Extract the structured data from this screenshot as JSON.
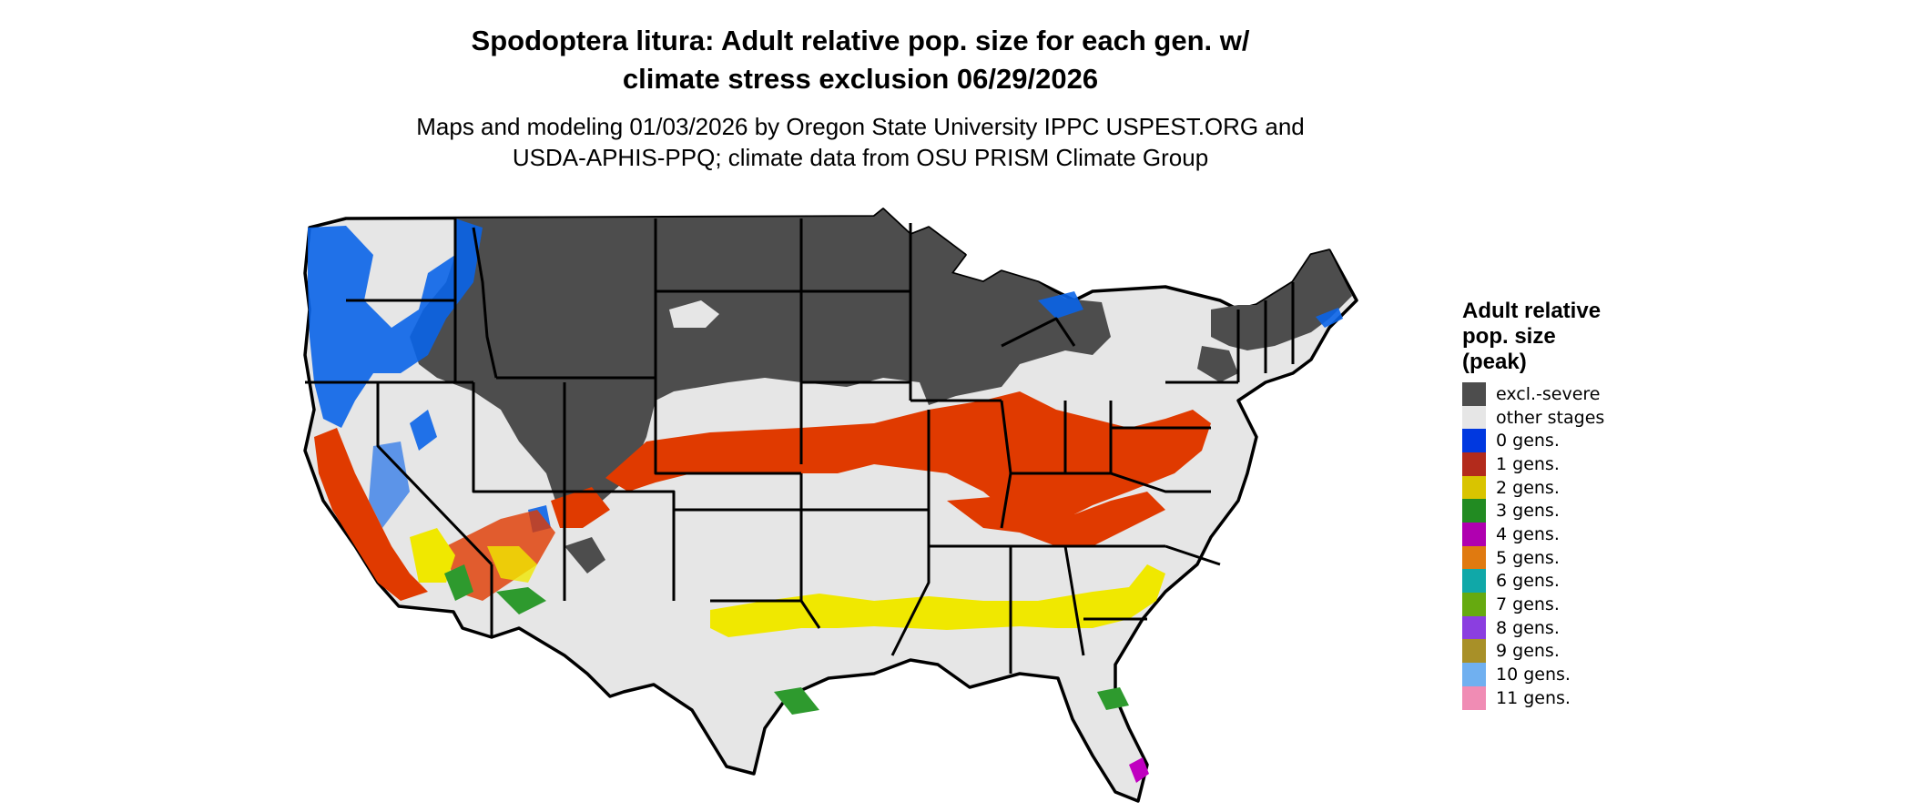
{
  "title": {
    "line1": "Spodoptera litura: Adult relative pop. size for each gen. w/",
    "line2": "climate stress exclusion 06/29/2026"
  },
  "subtitle": {
    "line1": "Maps and modeling 01/03/2026 by Oregon State University IPPC USPEST.ORG and",
    "line2": "USDA-APHIS-PPQ; climate data from OSU PRISM Climate Group"
  },
  "legend": {
    "title_lines": [
      "Adult relative",
      "pop. size",
      "(peak)"
    ],
    "items": [
      {
        "label": "excl.-severe",
        "color": "#4d4d4d"
      },
      {
        "label": "other stages",
        "color": "#e6e6e6"
      },
      {
        "label": "0 gens.",
        "color": "#0038e0"
      },
      {
        "label": "1 gens.",
        "color": "#b32b1c"
      },
      {
        "label": "2 gens.",
        "color": "#d9c400"
      },
      {
        "label": "3 gens.",
        "color": "#228b22"
      },
      {
        "label": "4 gens.",
        "color": "#b000b0"
      },
      {
        "label": "5 gens.",
        "color": "#e07a10"
      },
      {
        "label": "6 gens.",
        "color": "#10a8a8"
      },
      {
        "label": "7 gens.",
        "color": "#66aa10"
      },
      {
        "label": "8 gens.",
        "color": "#8b3ee0"
      },
      {
        "label": "9 gens.",
        "color": "#a89028"
      },
      {
        "label": "10 gens.",
        "color": "#70b0f0"
      },
      {
        "label": "11 gens.",
        "color": "#f08cb4"
      }
    ]
  },
  "map": {
    "region": "contiguous-us",
    "colors": {
      "excluded": "#4d4d4d",
      "other": "#e6e6e6",
      "zero_gens": "#0a64e8",
      "one_gen": "#e03a00",
      "two_gens": "#f0e800",
      "three_gens": "#2e9a2e",
      "four_gens": "#c000c0",
      "border": "#000000"
    }
  }
}
